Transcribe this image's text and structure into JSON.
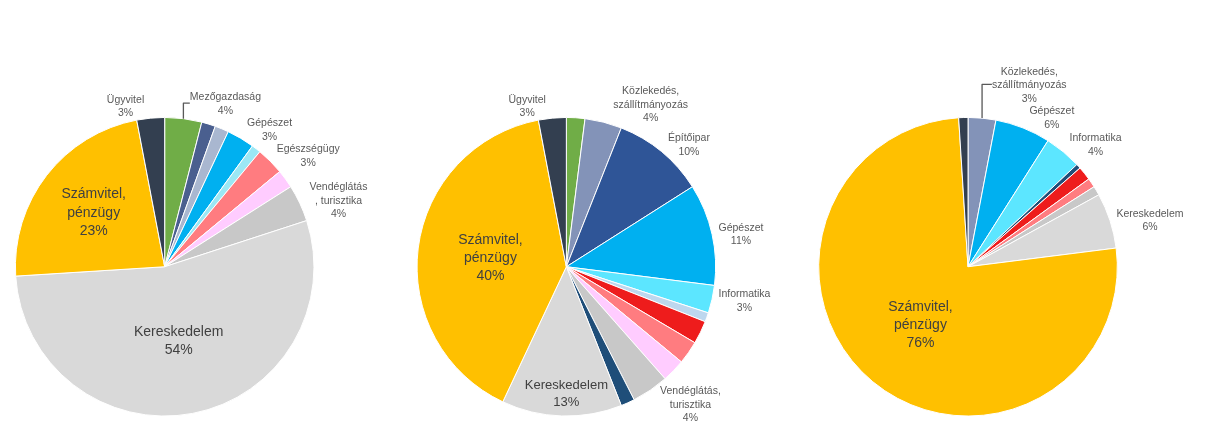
{
  "chart_data": [
    {
      "type": "pie",
      "categories": [
        "Mezőgazdaság",
        null,
        null,
        "Gépészet",
        null,
        "Egészségügy",
        null,
        "Vendéglátás\n, turisztika",
        "Kereskedelem",
        "Számvitel,\npénzügy",
        "Ügyvitel"
      ],
      "values": [
        4,
        1.5,
        1.5,
        3,
        1,
        3,
        2,
        4,
        54,
        23,
        3
      ],
      "colors": [
        "#70ad47",
        "#4a5f8f",
        "#a9b7d0",
        "#00b0f0",
        "#9be8f5",
        "#ff7c80",
        "#ffccff",
        "#c8c8c8",
        "#d9d9d9",
        "#ffc000",
        "#333f50"
      ],
      "value_labels": [
        "4%",
        null,
        null,
        "3%",
        null,
        "3%",
        null,
        "4%",
        "54%",
        "23%",
        "3%"
      ]
    },
    {
      "type": "pie",
      "categories": [
        null,
        "Közlekedés,\nszállítmányozás",
        "Építőipar",
        "Gépészet",
        "Informatika",
        null,
        null,
        null,
        null,
        "Vendéglátás,\nturisztika",
        null,
        "Kereskedelem",
        "Számvitel,\npénzügy",
        "Ügyvitel"
      ],
      "values": [
        2,
        4,
        10,
        11,
        3,
        1,
        2.5,
        2.5,
        2.5,
        4,
        1.5,
        13,
        40,
        3
      ],
      "colors": [
        "#70ad47",
        "#8393b8",
        "#2f5597",
        "#00b0f0",
        "#5ce6ff",
        "#bdd7ee",
        "#ee1c1c",
        "#ff7c80",
        "#ffccff",
        "#c8c8c8",
        "#1f4e79",
        "#d9d9d9",
        "#ffc000",
        "#333f50"
      ],
      "value_labels": [
        null,
        "4%",
        "10%",
        "11%",
        "3%",
        null,
        null,
        null,
        null,
        "4%",
        null,
        "13%",
        "40%",
        "3%"
      ]
    },
    {
      "type": "pie",
      "categories": [
        "Közlekedés,\nszállítmányozás",
        "Gépészet",
        "Informatika",
        null,
        null,
        null,
        null,
        "Kereskedelem",
        "Számvitel,\npénzügy",
        null
      ],
      "values": [
        3,
        6,
        4,
        0.5,
        1.5,
        1,
        1,
        6,
        76,
        1
      ],
      "colors": [
        "#8393b8",
        "#00b0f0",
        "#5ce6ff",
        "#1f4e79",
        "#ee1c1c",
        "#ff7c80",
        "#c8c8c8",
        "#d9d9d9",
        "#ffc000",
        "#333f50"
      ],
      "value_labels": [
        "3%",
        "6%",
        "4%",
        null,
        null,
        null,
        null,
        "6%",
        "76%",
        null
      ]
    }
  ]
}
